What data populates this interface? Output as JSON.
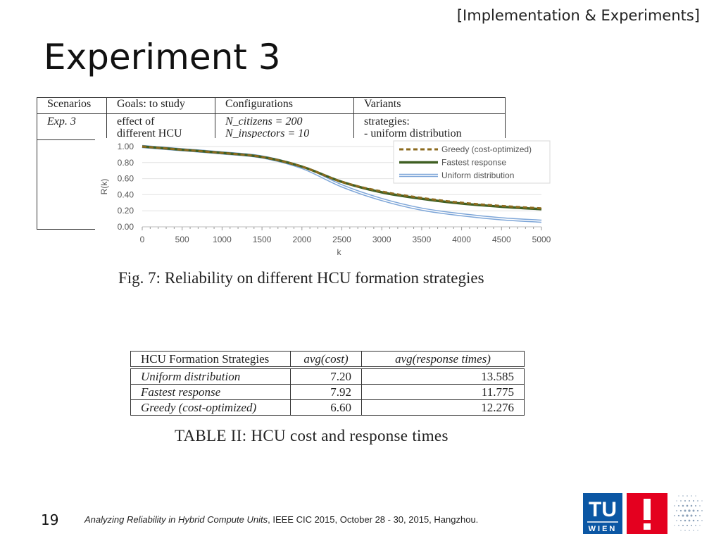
{
  "header": {
    "section": "[Implementation & Experiments]",
    "title": "Experiment 3"
  },
  "scenario_table": {
    "headers": [
      "Scenarios",
      "Goals: to study",
      "Configurations",
      "Variants"
    ],
    "row": {
      "scenario": "Exp. 3",
      "goal_lines": [
        "effect of",
        "different HCU"
      ],
      "config_lines": [
        "N_citizens = 200",
        "N_inspectors = 10"
      ],
      "variant_lines": [
        "strategies:",
        "- uniform distribution"
      ]
    }
  },
  "figure": {
    "caption": "Fig. 7: Reliability on different HCU formation strategies"
  },
  "chart_data": {
    "type": "line",
    "xlabel": "k",
    "ylabel": "R(k)",
    "xlim": [
      0,
      5000
    ],
    "ylim": [
      0,
      1
    ],
    "x_ticks": [
      "0",
      "500",
      "1000",
      "1500",
      "2000",
      "2500",
      "3000",
      "3500",
      "4000",
      "4500",
      "5000"
    ],
    "y_ticks": [
      "0.00",
      "0.20",
      "0.40",
      "0.60",
      "0.80",
      "1.00"
    ],
    "legend_position": "top-right",
    "grid": true,
    "x": [
      0,
      500,
      1000,
      1500,
      2000,
      2500,
      3000,
      3500,
      4000,
      4500,
      5000
    ],
    "series": [
      {
        "name": "Greedy (cost-optimized)",
        "color": "#8b6a1e",
        "style": "dashed",
        "values": [
          1.0,
          0.96,
          0.92,
          0.87,
          0.75,
          0.56,
          0.44,
          0.36,
          0.3,
          0.26,
          0.23
        ]
      },
      {
        "name": "Fastest response",
        "color": "#3f5f22",
        "style": "solid",
        "values": [
          1.0,
          0.96,
          0.92,
          0.87,
          0.75,
          0.56,
          0.43,
          0.35,
          0.29,
          0.25,
          0.22
        ]
      },
      {
        "name": "Uniform distribution",
        "color": "#7ea6d8",
        "style": "double",
        "values": [
          1.0,
          0.96,
          0.92,
          0.87,
          0.74,
          0.51,
          0.34,
          0.22,
          0.15,
          0.1,
          0.07
        ]
      }
    ]
  },
  "results_table": {
    "headers": [
      "HCU Formation Strategies",
      "avg(cost)",
      "avg(response times)"
    ],
    "rows": [
      {
        "strategy": "Uniform distribution",
        "cost": "7.20",
        "response": "13.585"
      },
      {
        "strategy": "Fastest response",
        "cost": "7.92",
        "response": "11.775"
      },
      {
        "strategy": "Greedy (cost-optimized)",
        "cost": "6.60",
        "response": "12.276"
      }
    ],
    "caption": "TABLE II: HCU cost and response times"
  },
  "footer": {
    "page": "19",
    "title_italic": "Analyzing Reliability in Hybrid Compute Units",
    "rest": ", IEEE CIC 2015, October 28 - 30, 2015, Hangzhou."
  },
  "logo": {
    "top": "TU",
    "bottom": "WIEN",
    "red": "#e4001f",
    "blue": "#0b57a4"
  }
}
